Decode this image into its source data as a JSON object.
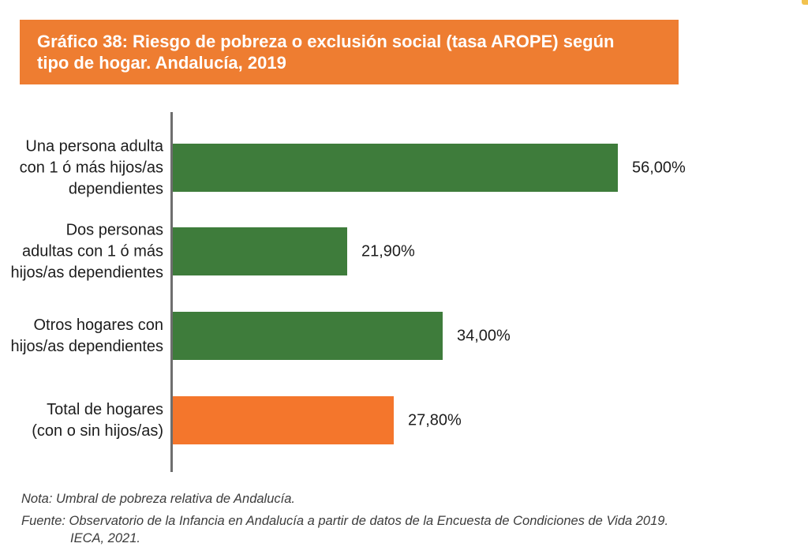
{
  "page": {
    "background": "#ffffff",
    "corner_dot_color": "#F2C24E"
  },
  "header": {
    "title": "Gráfico 38: Riesgo de pobreza o exclusión social (tasa AROPE) según\ntipo de hogar. Andalucía, 2019",
    "background": "#EE7D31",
    "text_color": "#FFFFFF"
  },
  "chart_data": {
    "type": "bar",
    "orientation": "horizontal",
    "title": "Gráfico 38: Riesgo de pobreza o exclusión social (tasa AROPE) según tipo de hogar. Andalucía, 2019",
    "categories": [
      "Una persona adulta\ncon 1 ó más hijos/as\ndependientes",
      "Dos personas\nadultas con 1 ó más\nhijos/as dependientes",
      "Otros hogares con\nhijos/as dependientes",
      "Total de hogares\n(con o sin hijos/as)"
    ],
    "values": [
      56.0,
      21.9,
      34.0,
      27.8
    ],
    "value_labels": [
      "56,00%",
      "21,90%",
      "34,00%",
      "27,80%"
    ],
    "unit": "%",
    "bar_colors": [
      "#3E7C3B",
      "#3E7C3B",
      "#3E7C3B",
      "#F4762C"
    ],
    "axis_color": "#6E6E6E",
    "grid": false,
    "legend": false,
    "x_axis_visible": false,
    "data_labels_position": "outside-end"
  },
  "footer": {
    "note": "Nota: Umbral de pobreza relativa de Andalucía.",
    "source_line1": "Fuente: Observatorio de la Infancia en Andalucía a partir de datos de la Encuesta de Condiciones de Vida 2019.",
    "source_line2": "IECA, 2021."
  }
}
